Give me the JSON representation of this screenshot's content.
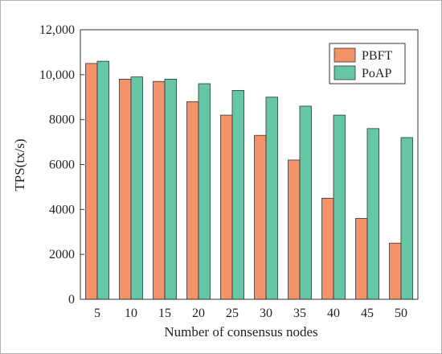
{
  "chart_data": {
    "type": "bar",
    "title": "",
    "xlabel": "Number of consensus nodes",
    "ylabel": "TPS(tx/s)",
    "categories": [
      "5",
      "10",
      "15",
      "20",
      "25",
      "30",
      "35",
      "40",
      "45",
      "50"
    ],
    "series": [
      {
        "name": "PBFT",
        "color": "#f4936a",
        "values": [
          10500,
          9800,
          9700,
          8800,
          8200,
          7300,
          6200,
          4500,
          3600,
          2500
        ]
      },
      {
        "name": "PoAP",
        "color": "#66c7a4",
        "values": [
          10600,
          9900,
          9800,
          9600,
          9300,
          9000,
          8600,
          8200,
          7600,
          7200
        ]
      }
    ],
    "ylim": [
      0,
      12000
    ],
    "yticks": [
      {
        "value": 0,
        "label": "0"
      },
      {
        "value": 2000,
        "label": "2000"
      },
      {
        "value": 4000,
        "label": "4000"
      },
      {
        "value": 6000,
        "label": "6000"
      },
      {
        "value": 8000,
        "label": "8000"
      },
      {
        "value": 10000,
        "label": "10,000"
      },
      {
        "value": 12000,
        "label": "12,000"
      }
    ],
    "grid": false,
    "legend_position": "top-right"
  }
}
